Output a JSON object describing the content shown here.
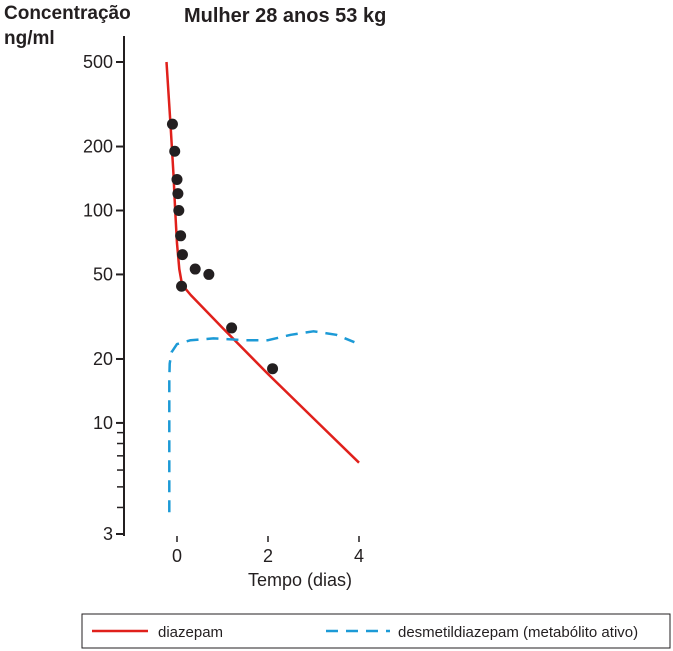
{
  "title": "Mulher 28 anos 53 kg",
  "colors": {
    "axis": "#231f20",
    "diazepam": "#e0201b",
    "desmetil": "#1c9ad6",
    "points": "#231f20"
  },
  "legend": {
    "diazepam": "diazepam",
    "desmetil": "desmetildiazepam (metabólito ativo)"
  },
  "chart_data": {
    "type": "line",
    "title": "Mulher 28 anos 53 kg",
    "ylabel_line1": "Concentração",
    "ylabel_line2": "ng/ml",
    "xlabel": "Tempo (dias)",
    "yscale": "log",
    "ylim": [
      3,
      500
    ],
    "xlim": [
      -0.3,
      4.1
    ],
    "y_ticks": [
      500,
      200,
      100,
      50,
      20,
      10,
      3
    ],
    "y_ticks_minor": [
      9,
      8,
      7,
      6,
      5,
      4
    ],
    "x_ticks": [
      0,
      2,
      4
    ],
    "grid": false,
    "legend_position": "bottom",
    "series": [
      {
        "name": "diazepam",
        "style": "solid",
        "x": [
          -0.23,
          -0.14,
          -0.08,
          -0.04,
          0.0,
          0.05,
          0.1,
          0.18,
          0.3,
          1.0,
          2.0,
          3.0,
          4.0
        ],
        "y": [
          500,
          250,
          150,
          100,
          70,
          53,
          46,
          43,
          40,
          28,
          17,
          10.5,
          6.5
        ]
      },
      {
        "name": "desmetildiazepam (metabólito ativo)",
        "style": "dashed",
        "x": [
          -0.17,
          -0.17,
          -0.17,
          -0.16,
          -0.12,
          0.0,
          0.3,
          0.8,
          1.5,
          2.0,
          2.5,
          3.0,
          3.5,
          3.9
        ],
        "y": [
          3.8,
          8.5,
          16,
          19,
          21.5,
          23.5,
          24.5,
          25,
          24.5,
          24.5,
          26,
          27,
          26,
          24
        ]
      },
      {
        "name": "",
        "type": "scatter",
        "x": [
          -0.1,
          -0.05,
          0.0,
          0.02,
          0.04,
          0.08,
          0.12,
          0.4,
          0.7,
          0.1,
          1.2,
          2.1
        ],
        "y": [
          255,
          190,
          140,
          120,
          100,
          76,
          62,
          53,
          50,
          44,
          28,
          18
        ]
      }
    ]
  }
}
